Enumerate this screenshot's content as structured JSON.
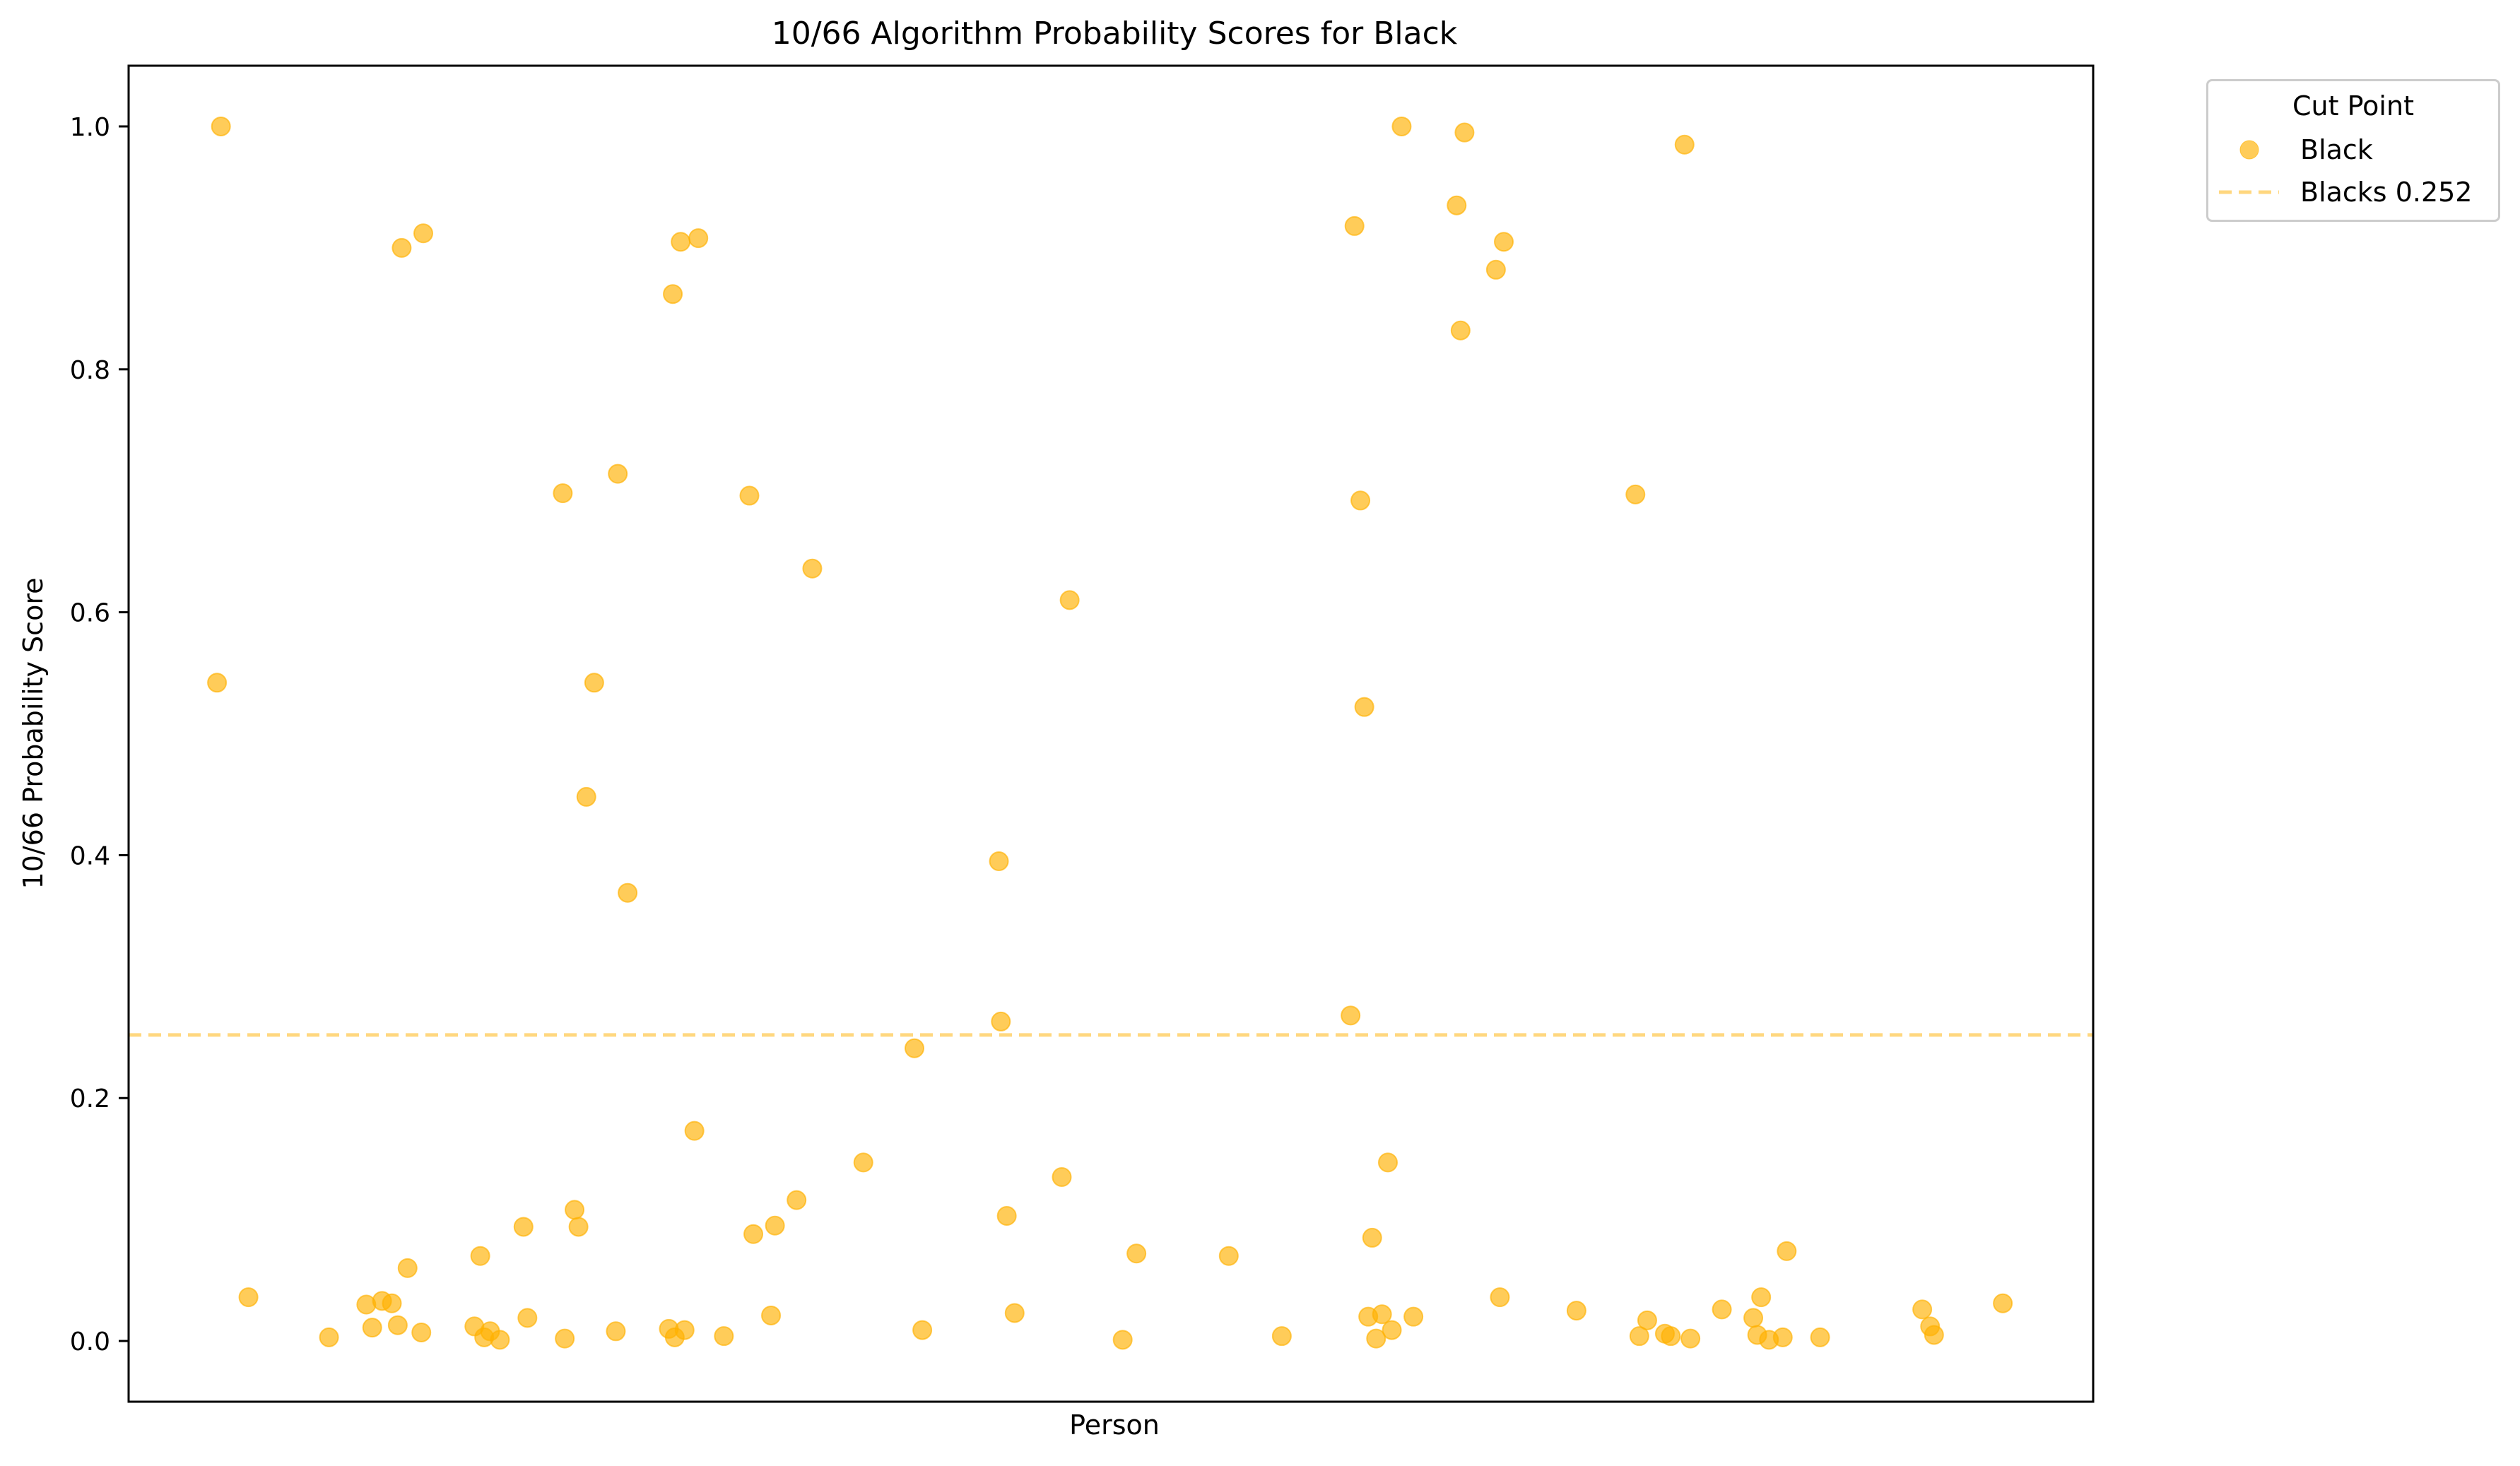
{
  "chart_data": {
    "type": "scatter",
    "title": "10/66 Algorithm Probability Scores for Black",
    "xlabel": "Person",
    "ylabel": "10/66 Probability Score",
    "ylim": [
      -0.05,
      1.05
    ],
    "xlim": [
      0,
      1
    ],
    "x_ticks_shown": false,
    "yticks": [
      0.0,
      0.2,
      0.4,
      0.6,
      0.8,
      1.0
    ],
    "ytick_labels": [
      "0.0",
      "0.2",
      "0.4",
      "0.6",
      "0.8",
      "1.0"
    ],
    "grid": false,
    "legend": {
      "title": "Cut Point",
      "placement": "outside upper right",
      "entries": [
        {
          "label": "Black",
          "kind": "marker"
        },
        {
          "label": "Blacks 0.252",
          "kind": "dashed-line"
        }
      ]
    },
    "series": [
      {
        "name": "Black",
        "color": "#FFB000",
        "opacity": 0.65,
        "points": [
          [
            0.045,
            0.542
          ],
          [
            0.047,
            1.0
          ],
          [
            0.061,
            0.036
          ],
          [
            0.102,
            0.003
          ],
          [
            0.121,
            0.03
          ],
          [
            0.124,
            0.011
          ],
          [
            0.129,
            0.033
          ],
          [
            0.134,
            0.031
          ],
          [
            0.137,
            0.013
          ],
          [
            0.139,
            0.9
          ],
          [
            0.142,
            0.06
          ],
          [
            0.149,
            0.007
          ],
          [
            0.15,
            0.912
          ],
          [
            0.176,
            0.012
          ],
          [
            0.179,
            0.07
          ],
          [
            0.181,
            0.003
          ],
          [
            0.184,
            0.008
          ],
          [
            0.189,
            0.001
          ],
          [
            0.201,
            0.094
          ],
          [
            0.203,
            0.019
          ],
          [
            0.221,
            0.698
          ],
          [
            0.222,
            0.002
          ],
          [
            0.227,
            0.108
          ],
          [
            0.229,
            0.094
          ],
          [
            0.233,
            0.448
          ],
          [
            0.237,
            0.542
          ],
          [
            0.254,
            0.369
          ],
          [
            0.248,
            0.008
          ],
          [
            0.249,
            0.714
          ],
          [
            0.275,
            0.01
          ],
          [
            0.277,
            0.862
          ],
          [
            0.278,
            0.003
          ],
          [
            0.281,
            0.905
          ],
          [
            0.283,
            0.009
          ],
          [
            0.288,
            0.173
          ],
          [
            0.29,
            0.908
          ],
          [
            0.303,
            0.004
          ],
          [
            0.316,
            0.696
          ],
          [
            0.318,
            0.088
          ],
          [
            0.327,
            0.021
          ],
          [
            0.329,
            0.095
          ],
          [
            0.34,
            0.116
          ],
          [
            0.348,
            0.636
          ],
          [
            0.374,
            0.147
          ],
          [
            0.4,
            0.241
          ],
          [
            0.404,
            0.009
          ],
          [
            0.443,
            0.395
          ],
          [
            0.444,
            0.263
          ],
          [
            0.447,
            0.103
          ],
          [
            0.451,
            0.023
          ],
          [
            0.475,
            0.135
          ],
          [
            0.479,
            0.61
          ],
          [
            0.506,
            0.001
          ],
          [
            0.513,
            0.072
          ],
          [
            0.56,
            0.07
          ],
          [
            0.587,
            0.004
          ],
          [
            0.622,
            0.268
          ],
          [
            0.624,
            0.918
          ],
          [
            0.627,
            0.692
          ],
          [
            0.629,
            0.522
          ],
          [
            0.631,
            0.02
          ],
          [
            0.633,
            0.085
          ],
          [
            0.635,
            0.002
          ],
          [
            0.638,
            0.022
          ],
          [
            0.641,
            0.147
          ],
          [
            0.643,
            0.009
          ],
          [
            0.648,
            1.0
          ],
          [
            0.654,
            0.02
          ],
          [
            0.676,
            0.935
          ],
          [
            0.678,
            0.832
          ],
          [
            0.68,
            0.995
          ],
          [
            0.696,
            0.882
          ],
          [
            0.698,
            0.036
          ],
          [
            0.7,
            0.905
          ],
          [
            0.737,
            0.025
          ],
          [
            0.767,
            0.697
          ],
          [
            0.769,
            0.004
          ],
          [
            0.773,
            0.017
          ],
          [
            0.782,
            0.006
          ],
          [
            0.785,
            0.004
          ],
          [
            0.792,
            0.985
          ],
          [
            0.795,
            0.002
          ],
          [
            0.811,
            0.026
          ],
          [
            0.827,
            0.019
          ],
          [
            0.829,
            0.005
          ],
          [
            0.831,
            0.036
          ],
          [
            0.835,
            0.001
          ],
          [
            0.842,
            0.003
          ],
          [
            0.844,
            0.074
          ],
          [
            0.861,
            0.003
          ],
          [
            0.913,
            0.026
          ],
          [
            0.917,
            0.012
          ],
          [
            0.919,
            0.005
          ],
          [
            0.954,
            0.031
          ]
        ]
      }
    ],
    "reference_lines": [
      {
        "label": "Blacks 0.252",
        "y": 0.252,
        "color": "#FFB000",
        "style": "dashed",
        "opacity": 0.5
      }
    ]
  }
}
